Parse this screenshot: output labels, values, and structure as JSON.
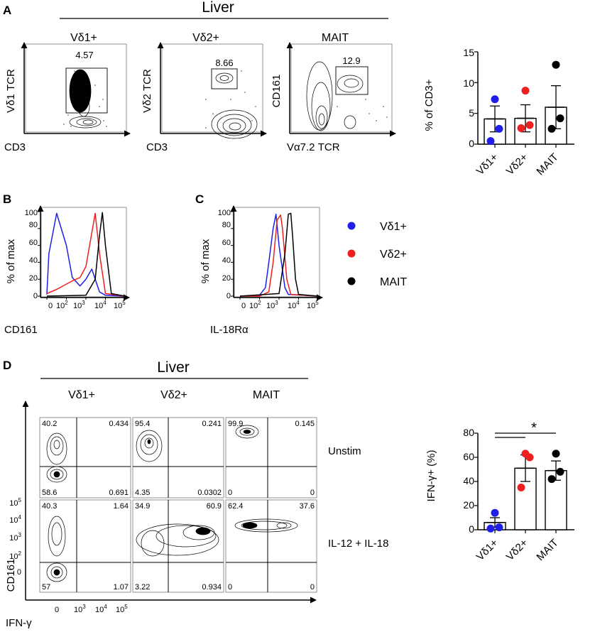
{
  "colors": {
    "vd1": "#1f1fe8",
    "vd2": "#ee1f1f",
    "mait": "#000000"
  },
  "panelA": {
    "label": "A",
    "title": "Liver",
    "plots": [
      {
        "title": "Vδ1+",
        "ylabel": "Vδ1 TCR",
        "xlabel": "CD3",
        "gate_value": "4.57"
      },
      {
        "title": "Vδ2+",
        "ylabel": "Vδ2 TCR",
        "xlabel": "CD3",
        "gate_value": "8.66"
      },
      {
        "title": "MAIT",
        "ylabel": "CD161",
        "xlabel": "Vα7.2 TCR",
        "gate_value": "12.9"
      }
    ]
  },
  "panelB": {
    "label": "B",
    "ylabel": "% of max",
    "xlabel": "CD161",
    "yticks": [
      "0",
      "20",
      "40",
      "60",
      "80",
      "100"
    ],
    "xticks": [
      {
        "base": "0",
        "exp": ""
      },
      {
        "base": "10",
        "exp": "2"
      },
      {
        "base": "10",
        "exp": "3"
      },
      {
        "base": "10",
        "exp": "4"
      },
      {
        "base": "10",
        "exp": "5"
      }
    ]
  },
  "panelC": {
    "label": "C",
    "ylabel": "% of max",
    "xlabel": "IL-18Rα",
    "yticks": [
      "0",
      "20",
      "40",
      "60",
      "80",
      "100"
    ],
    "xticks": [
      {
        "base": "0",
        "exp": ""
      },
      {
        "base": "10",
        "exp": "2"
      },
      {
        "base": "10",
        "exp": "3"
      },
      {
        "base": "10",
        "exp": "4"
      },
      {
        "base": "10",
        "exp": "5"
      }
    ]
  },
  "legend": {
    "items": [
      "Vδ1+",
      "Vδ2+",
      "MAIT"
    ]
  },
  "panelD": {
    "label": "D",
    "title": "Liver",
    "columns": [
      "Vδ1+",
      "Vδ2+",
      "MAIT"
    ],
    "row_labels": [
      "Unstim",
      "IL-12 + IL-18"
    ],
    "ylabel": "CD161",
    "xlabel": "IFN-γ",
    "yticks": [
      {
        "base": "0",
        "exp": ""
      },
      {
        "base": "10",
        "exp": "2"
      },
      {
        "base": "10",
        "exp": "3"
      },
      {
        "base": "10",
        "exp": "4"
      },
      {
        "base": "10",
        "exp": "5"
      }
    ],
    "xticks": [
      {
        "base": "0",
        "exp": ""
      },
      {
        "base": "10",
        "exp": "3"
      },
      {
        "base": "10",
        "exp": "4"
      },
      {
        "base": "10",
        "exp": "5"
      }
    ],
    "quadrants": [
      [
        [
          "40.2",
          "0.434",
          "58.6",
          "0.691"
        ],
        [
          "95.4",
          "0.241",
          "4.35",
          "0.0302"
        ],
        [
          "99.9",
          "0.145",
          "0",
          "0"
        ]
      ],
      [
        [
          "40.3",
          "1.64",
          "57",
          "1.07"
        ],
        [
          "34.9",
          "60.9",
          "3.22",
          "0.934"
        ],
        [
          "62.4",
          "37.6",
          "0",
          "0"
        ]
      ]
    ]
  },
  "chart_data": [
    {
      "id": "panelA_bar",
      "type": "bar",
      "categories": [
        "Vδ1+",
        "Vδ2+",
        "MAIT"
      ],
      "values": [
        4.1,
        4.2,
        6.0
      ],
      "errors": [
        2.1,
        2.2,
        3.5
      ],
      "points": [
        [
          0.5,
          2.5,
          7.3
        ],
        [
          2.6,
          3.1,
          8.7
        ],
        [
          2.5,
          4.2,
          12.9
        ]
      ],
      "point_colors": [
        "#1f1fe8",
        "#ee1f1f",
        "#000000"
      ],
      "ylabel": "% of CD3+",
      "ylim": [
        0,
        15
      ],
      "yticks": [
        0,
        5,
        10,
        15
      ],
      "significance": ""
    },
    {
      "id": "panelB_histogram",
      "type": "line",
      "xlabel": "CD161",
      "ylabel": "% of max",
      "x_scale": "biexponential",
      "ylim": [
        0,
        100
      ],
      "series": [
        {
          "name": "Vδ1+",
          "color": "#1f1fe8",
          "x": [
            0,
            10,
            50,
            100,
            200,
            500,
            1000,
            2000,
            3000,
            5000,
            10000,
            100000
          ],
          "y": [
            2,
            50,
            98,
            60,
            22,
            12,
            20,
            32,
            20,
            5,
            1,
            0
          ]
        },
        {
          "name": "Vδ2+",
          "color": "#ee1f1f",
          "x": [
            0,
            50,
            200,
            500,
            1000,
            2000,
            3000,
            5000,
            10000,
            100000
          ],
          "y": [
            3,
            8,
            18,
            22,
            35,
            75,
            98,
            50,
            3,
            0
          ]
        },
        {
          "name": "MAIT",
          "color": "#000000",
          "x": [
            0,
            1000,
            3000,
            5000,
            7000,
            10000,
            20000,
            100000
          ],
          "y": [
            0,
            1,
            20,
            72,
            99,
            60,
            3,
            0
          ]
        }
      ]
    },
    {
      "id": "panelC_histogram",
      "type": "line",
      "xlabel": "IL-18Rα",
      "ylabel": "% of max",
      "x_scale": "biexponential",
      "ylim": [
        0,
        100
      ],
      "series": [
        {
          "name": "Vδ1+",
          "color": "#1f1fe8",
          "x": [
            0,
            100,
            200,
            300,
            500,
            700,
            1000,
            2000,
            3000,
            100000
          ],
          "y": [
            0,
            1,
            10,
            40,
            80,
            97,
            60,
            10,
            2,
            0
          ]
        },
        {
          "name": "Vδ2+",
          "color": "#ee1f1f",
          "x": [
            0,
            100,
            300,
            500,
            800,
            1200,
            1500,
            2500,
            4000,
            100000
          ],
          "y": [
            0,
            0,
            5,
            40,
            90,
            96,
            80,
            20,
            2,
            0
          ]
        },
        {
          "name": "MAIT",
          "color": "#000000",
          "x": [
            0,
            1000,
            2000,
            3000,
            4000,
            5000,
            7000,
            10000,
            100000
          ],
          "y": [
            0,
            3,
            50,
            97,
            98,
            70,
            20,
            2,
            0
          ]
        }
      ]
    },
    {
      "id": "panelD_bar",
      "type": "bar",
      "categories": [
        "Vδ1+",
        "Vδ2+",
        "MAIT"
      ],
      "values": [
        6,
        51,
        49
      ],
      "errors": [
        4,
        11,
        8
      ],
      "points": [
        [
          1,
          2,
          14
        ],
        [
          35,
          60,
          63
        ],
        [
          42,
          48,
          63
        ]
      ],
      "point_colors": [
        "#1f1fe8",
        "#ee1f1f",
        "#000000"
      ],
      "ylabel": "IFN-γ+ (%)",
      "ylim": [
        0,
        80
      ],
      "yticks": [
        0,
        20,
        40,
        60,
        80
      ],
      "significance": "*"
    }
  ]
}
